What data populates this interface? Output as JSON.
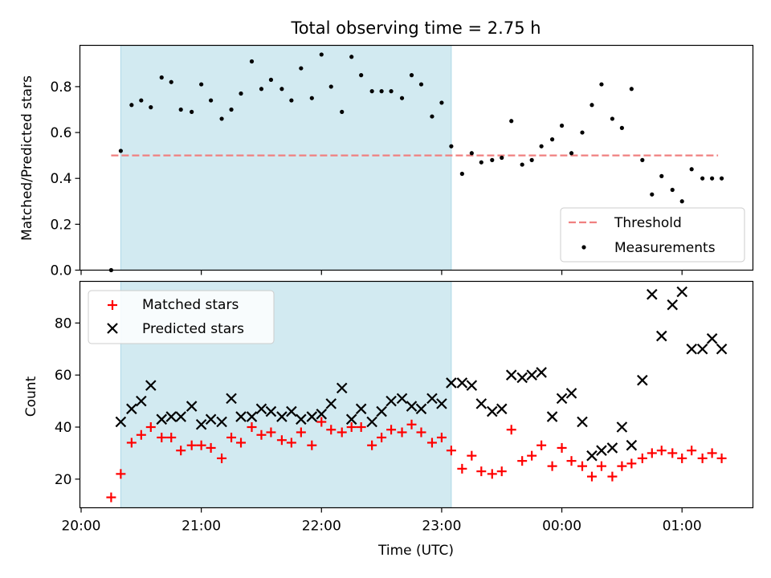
{
  "chart_data": {
    "title": "Total observing time = 2.75 h",
    "xlabel": "Time (UTC)",
    "x_ticks": [
      "20:00",
      "21:00",
      "22:00",
      "23:00",
      "00:00",
      "01:00"
    ],
    "x_range_hours": [
      19.99,
      25.59
    ],
    "shaded_interval_hours": [
      20.33,
      23.08
    ],
    "top": {
      "type": "scatter",
      "ylabel": "Matched/Predicted stars",
      "ylim": [
        0.0,
        0.98
      ],
      "y_ticks": [
        "0.0",
        "0.2",
        "0.4",
        "0.6",
        "0.8"
      ],
      "threshold": {
        "name": "Threshold",
        "value": 0.5,
        "color": "#f08080",
        "x": [
          20.25,
          25.3
        ]
      },
      "series": [
        {
          "name": "Measurements",
          "color": "#000000",
          "x": [
            20.25,
            20.33,
            20.42,
            20.5,
            20.58,
            20.67,
            20.75,
            20.83,
            20.92,
            21.0,
            21.08,
            21.17,
            21.25,
            21.33,
            21.42,
            21.5,
            21.58,
            21.67,
            21.75,
            21.83,
            21.92,
            22.0,
            22.08,
            22.17,
            22.25,
            22.33,
            22.42,
            22.5,
            22.58,
            22.67,
            22.75,
            22.83,
            22.92,
            23.0,
            23.08,
            23.17,
            23.25,
            23.33,
            23.42,
            23.5,
            23.58,
            23.67,
            23.75,
            23.83,
            23.92,
            24.0,
            24.08,
            24.17,
            24.25,
            24.33,
            24.42,
            24.5,
            24.58,
            24.67,
            24.75,
            24.83,
            24.92,
            25.0,
            25.08,
            25.17,
            25.25,
            25.33
          ],
          "y": [
            0.0,
            0.52,
            0.72,
            0.74,
            0.71,
            0.84,
            0.82,
            0.7,
            0.69,
            0.81,
            0.74,
            0.66,
            0.7,
            0.77,
            0.91,
            0.79,
            0.83,
            0.79,
            0.74,
            0.88,
            0.75,
            0.94,
            0.8,
            0.69,
            0.93,
            0.85,
            0.78,
            0.78,
            0.78,
            0.75,
            0.85,
            0.81,
            0.67,
            0.73,
            0.54,
            0.42,
            0.51,
            0.47,
            0.48,
            0.49,
            0.65,
            0.46,
            0.48,
            0.54,
            0.57,
            0.63,
            0.51,
            0.6,
            0.72,
            0.81,
            0.66,
            0.62,
            0.79,
            0.48,
            0.33,
            0.41,
            0.35,
            0.3,
            0.44,
            0.4,
            0.4,
            0.4
          ]
        }
      ]
    },
    "bottom": {
      "type": "scatter",
      "ylabel": "Count",
      "ylim": [
        9,
        96
      ],
      "y_ticks": [
        "20",
        "40",
        "60",
        "80"
      ],
      "series": [
        {
          "name": "Matched stars",
          "color": "#ff0000",
          "x": [
            20.25,
            20.33,
            20.42,
            20.5,
            20.58,
            20.67,
            20.75,
            20.83,
            20.92,
            21.0,
            21.08,
            21.17,
            21.25,
            21.33,
            21.42,
            21.5,
            21.58,
            21.67,
            21.75,
            21.83,
            21.92,
            22.0,
            22.08,
            22.17,
            22.25,
            22.33,
            22.42,
            22.5,
            22.58,
            22.67,
            22.75,
            22.83,
            22.92,
            23.0,
            23.08,
            23.17,
            23.25,
            23.33,
            23.42,
            23.5,
            23.58,
            23.67,
            23.75,
            23.83,
            23.92,
            24.0,
            24.08,
            24.17,
            24.25,
            24.33,
            24.42,
            24.5,
            24.58,
            24.67,
            24.75,
            24.83,
            24.92,
            25.0,
            25.08,
            25.17,
            25.25,
            25.33
          ],
          "y": [
            13,
            22,
            34,
            37,
            40,
            36,
            36,
            31,
            33,
            33,
            32,
            28,
            36,
            34,
            40,
            37,
            38,
            35,
            34,
            38,
            33,
            42,
            39,
            38,
            40,
            40,
            33,
            36,
            39,
            38,
            41,
            38,
            34,
            36,
            31,
            24,
            29,
            23,
            22,
            23,
            39,
            27,
            29,
            33,
            25,
            32,
            27,
            25,
            21,
            25,
            21,
            25,
            26,
            28,
            30,
            31,
            30,
            28,
            31,
            28,
            30,
            28
          ]
        },
        {
          "name": "Predicted stars",
          "color": "#000000",
          "x": [
            20.33,
            20.42,
            20.5,
            20.58,
            20.67,
            20.75,
            20.83,
            20.92,
            21.0,
            21.08,
            21.17,
            21.25,
            21.33,
            21.42,
            21.5,
            21.58,
            21.67,
            21.75,
            21.83,
            21.92,
            22.0,
            22.08,
            22.17,
            22.25,
            22.33,
            22.42,
            22.5,
            22.58,
            22.67,
            22.75,
            22.83,
            22.92,
            23.0,
            23.08,
            23.17,
            23.25,
            23.33,
            23.42,
            23.5,
            23.58,
            23.67,
            23.75,
            23.83,
            23.92,
            24.0,
            24.08,
            24.17,
            24.25,
            24.33,
            24.42,
            24.5,
            24.58,
            24.67,
            24.75,
            24.83,
            24.92,
            25.0,
            25.08,
            25.17,
            25.25,
            25.33
          ],
          "y": [
            42,
            47,
            50,
            56,
            43,
            44,
            44,
            48,
            41,
            43,
            42,
            51,
            44,
            44,
            47,
            46,
            44,
            46,
            43,
            44,
            45,
            49,
            55,
            43,
            47,
            42,
            46,
            50,
            51,
            48,
            47,
            51,
            49,
            57,
            57,
            56,
            49,
            46,
            47,
            60,
            59,
            60,
            61,
            44,
            51,
            53,
            42,
            29,
            31,
            32,
            40,
            33,
            58,
            91,
            75,
            87,
            92,
            70,
            70,
            74,
            70
          ]
        }
      ]
    },
    "legend_top": {
      "position": "lower right"
    },
    "legend_bottom": {
      "position": "upper left"
    },
    "shade_color": "#add8e6"
  }
}
